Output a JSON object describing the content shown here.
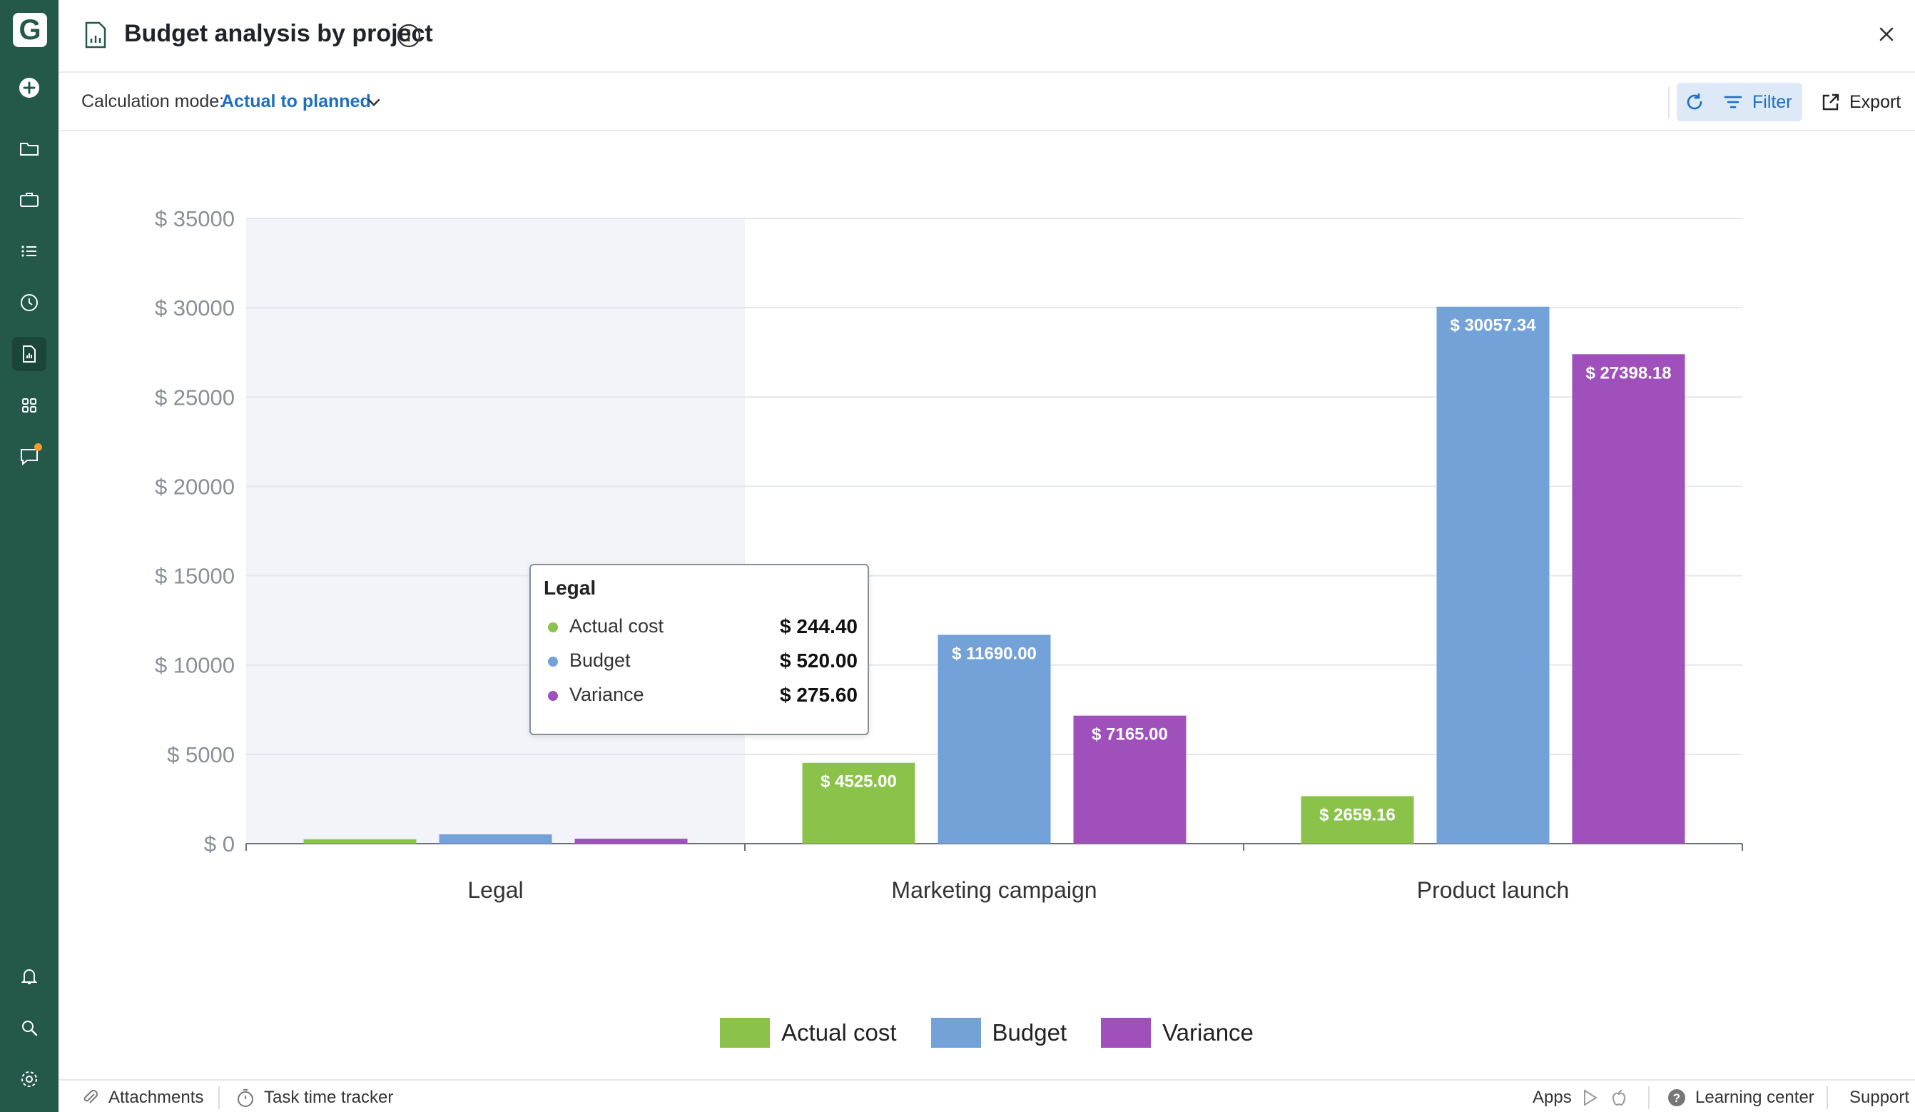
{
  "app": {
    "logo_letter": "G"
  },
  "sidebar": {
    "items": [
      {
        "icon": "plus-circle-icon"
      },
      {
        "icon": "folder-icon"
      },
      {
        "icon": "briefcase-icon"
      },
      {
        "icon": "list-icon"
      },
      {
        "icon": "clock-icon"
      },
      {
        "icon": "report-icon",
        "active": true
      },
      {
        "icon": "apps-grid-icon"
      },
      {
        "icon": "chat-icon",
        "notification": true
      },
      {
        "icon": "bell-icon"
      },
      {
        "icon": "search-icon"
      },
      {
        "icon": "gear-icon"
      }
    ]
  },
  "header": {
    "title": "Budget analysis by project"
  },
  "toolbar": {
    "calc_label": "Calculation mode:",
    "calc_value": "Actual to planned",
    "filter_label": "Filter",
    "export_label": "Export"
  },
  "chart_data": {
    "type": "bar",
    "categories": [
      "Legal",
      "Marketing campaign",
      "Product launch"
    ],
    "series": [
      {
        "name": "Actual cost",
        "color": "#8bc34a",
        "values": [
          244.4,
          4525.0,
          2659.16
        ],
        "labels": [
          "",
          "$ 4525.00",
          "$ 2659.16"
        ]
      },
      {
        "name": "Budget",
        "color": "#72a2d8",
        "values": [
          520.0,
          11690.0,
          30057.34
        ],
        "labels": [
          "",
          "$ 11690.00",
          "$ 30057.34"
        ]
      },
      {
        "name": "Variance",
        "color": "#a050ba",
        "values": [
          275.6,
          7165.0,
          27398.18
        ],
        "labels": [
          "",
          "$ 7165.00",
          "$ 27398.18"
        ]
      }
    ],
    "ylim": [
      0,
      35000
    ],
    "yticks": [
      0,
      5000,
      10000,
      15000,
      20000,
      25000,
      30000,
      35000
    ],
    "ytick_labels": [
      "$ 0",
      "$ 5000",
      "$ 10000",
      "$ 15000",
      "$ 20000",
      "$ 25000",
      "$ 30000",
      "$ 35000"
    ],
    "highlighted_category": "Legal",
    "grid": true,
    "legend_position": "bottom-center"
  },
  "tooltip": {
    "title": "Legal",
    "rows": [
      {
        "name": "Actual cost",
        "value": "$ 244.40",
        "color": "#8bc34a"
      },
      {
        "name": "Budget",
        "value": "$ 520.00",
        "color": "#72a2d8"
      },
      {
        "name": "Variance",
        "value": "$ 275.60",
        "color": "#a050ba"
      }
    ]
  },
  "legend": [
    {
      "label": "Actual cost",
      "color": "#8bc34a"
    },
    {
      "label": "Budget",
      "color": "#72a2d8"
    },
    {
      "label": "Variance",
      "color": "#a050ba"
    }
  ],
  "footer": {
    "attachments": "Attachments",
    "time_tracker": "Task time tracker",
    "apps": "Apps",
    "learning_center": "Learning center",
    "support": "Support"
  }
}
